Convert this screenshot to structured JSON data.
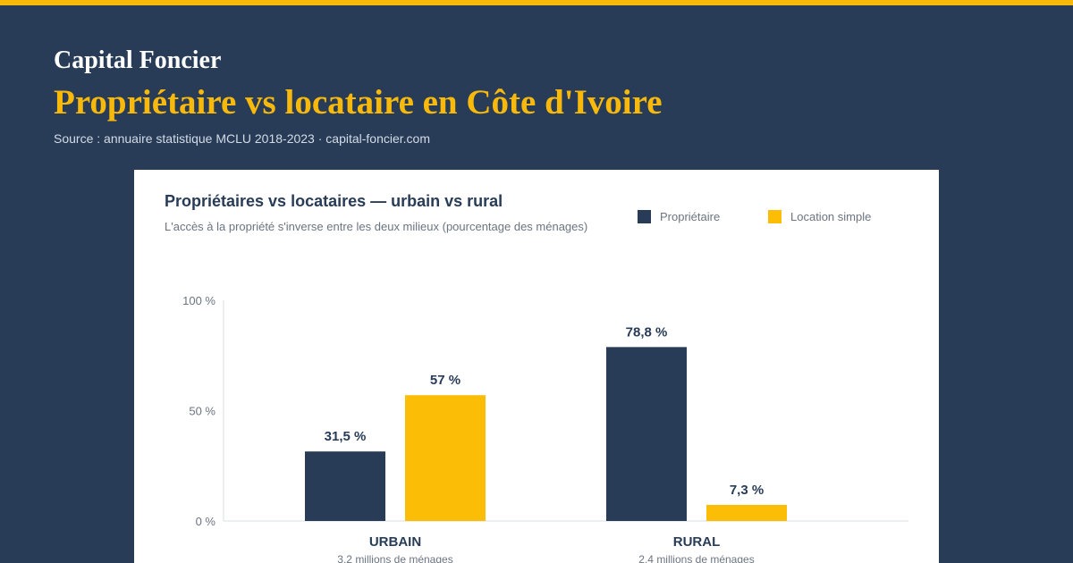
{
  "header": {
    "brand": "Capital Foncier",
    "title": "Propriétaire vs locataire en Côte d'Ivoire",
    "source": "Source : annuaire statistique MCLU 2018-2023 · capital-foncier.com"
  },
  "colors": {
    "background": "#283c58",
    "accent": "#f9b90a",
    "owner": "#283c58",
    "renter": "#fbbd05"
  },
  "chart_data": {
    "type": "bar",
    "title": "Propriétaires vs locataires — urbain vs rural",
    "subtitle": "L'accès à la propriété s'inverse entre les deux milieux (pourcentage des ménages)",
    "categories": [
      "URBAIN",
      "RURAL"
    ],
    "category_notes": [
      "3,2 millions de ménages",
      "2,4 millions de ménages"
    ],
    "series": [
      {
        "name": "Propriétaire",
        "values": [
          31.5,
          78.8
        ],
        "labels": [
          "31,5 %",
          "78,8 %"
        ],
        "color": "#283c58"
      },
      {
        "name": "Location simple",
        "values": [
          57,
          7.3
        ],
        "labels": [
          "57 %",
          "7,3 %"
        ],
        "color": "#fbbd05"
      }
    ],
    "ylim": [
      0,
      100
    ],
    "yticks": [
      {
        "value": 0,
        "label": "0 %"
      },
      {
        "value": 50,
        "label": "50 %"
      },
      {
        "value": 100,
        "label": "100 %"
      }
    ],
    "legend_position": "top-right",
    "grid": false
  }
}
